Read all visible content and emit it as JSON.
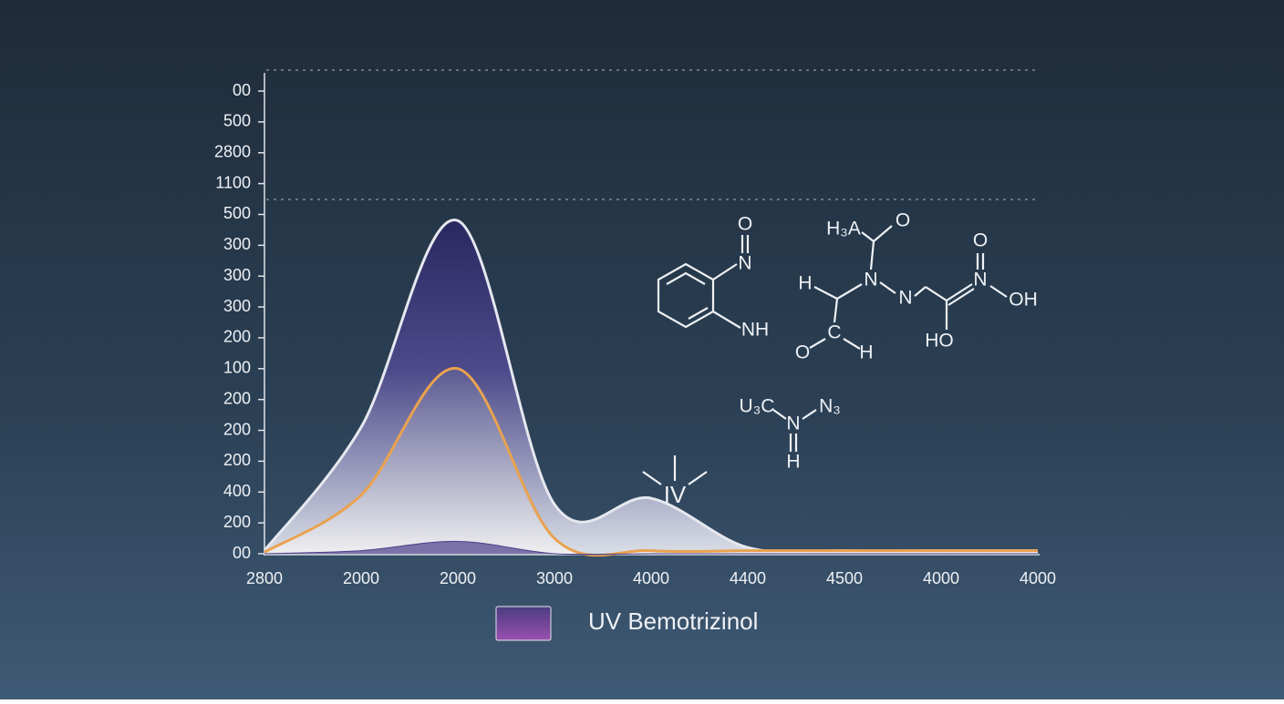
{
  "chart_data": {
    "type": "area",
    "categories": [
      "2800",
      "2000",
      "2000",
      "3000",
      "4000",
      "4400",
      "4500",
      "4000",
      "4000"
    ],
    "ylim": [
      0,
      15
    ],
    "yticks": [
      {
        "value": 0,
        "label": "00"
      },
      {
        "value": 1,
        "label": "200"
      },
      {
        "value": 2,
        "label": "400"
      },
      {
        "value": 3,
        "label": "200"
      },
      {
        "value": 4,
        "label": "200"
      },
      {
        "value": 5,
        "label": "200"
      },
      {
        "value": 6,
        "label": "100"
      },
      {
        "value": 7,
        "label": "200"
      },
      {
        "value": 8,
        "label": "300"
      },
      {
        "value": 9,
        "label": "300"
      },
      {
        "value": 10,
        "label": "300"
      },
      {
        "value": 11,
        "label": "500"
      },
      {
        "value": 12,
        "label": "1100"
      },
      {
        "value": 13,
        "label": "2800"
      },
      {
        "value": 14,
        "label": "500"
      },
      {
        "value": 15,
        "label": "00"
      }
    ],
    "series": [
      {
        "name": "UV  Bemotrizinol",
        "color": "#2e2a62",
        "values": [
          0.1,
          4.1,
          10.8,
          1.6,
          1.8,
          0.2,
          0.1,
          0.1,
          0.1
        ]
      },
      {
        "color": "#e9a24f",
        "values": [
          0.05,
          1.9,
          6.0,
          0.5,
          0.1,
          0.1,
          0.1,
          0.1,
          0.1
        ]
      },
      {
        "color": "#4a3f8a",
        "values": [
          0,
          0.1,
          0.4,
          0,
          0,
          0,
          0,
          0,
          0
        ]
      }
    ],
    "annotations": [
      "IV",
      "O",
      "N",
      "NH",
      "H₃A",
      "O",
      "H",
      "N",
      "N",
      "O",
      "N",
      "OH",
      "HO",
      "C",
      "O",
      "H",
      "U₃C",
      "N",
      "N₃",
      "H"
    ]
  }
}
